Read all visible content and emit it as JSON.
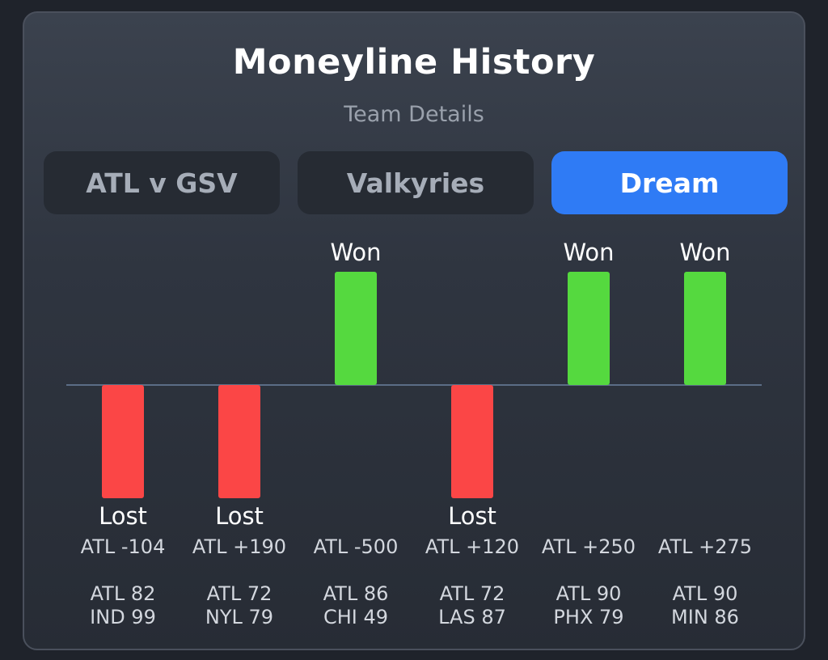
{
  "header": {
    "title": "Moneyline History",
    "subtitle": "Team Details"
  },
  "tabs": [
    {
      "label": "ATL v GSV",
      "active": false
    },
    {
      "label": "Valkyries",
      "active": false
    },
    {
      "label": "Dream",
      "active": true
    }
  ],
  "colors": {
    "won": "#55d93f",
    "lost": "#fb4646",
    "active_tab": "#2f7bf5",
    "baseline": "#5b6d86"
  },
  "chart_data": {
    "type": "bar",
    "categories": [
      "ATL -104",
      "ATL +190",
      "ATL -500",
      "ATL +120",
      "ATL +250",
      "ATL +275"
    ],
    "games": [
      {
        "result": "Lost",
        "line": "ATL -104",
        "score_team": "ATL 82",
        "score_opp": "IND 99",
        "value": -1
      },
      {
        "result": "Lost",
        "line": "ATL +190",
        "score_team": "ATL 72",
        "score_opp": "NYL 79",
        "value": -1
      },
      {
        "result": "Won",
        "line": "ATL -500",
        "score_team": "ATL 86",
        "score_opp": "CHI 49",
        "value": 1
      },
      {
        "result": "Lost",
        "line": "ATL +120",
        "score_team": "ATL 72",
        "score_opp": "LAS 87",
        "value": -1
      },
      {
        "result": "Won",
        "line": "ATL +250",
        "score_team": "ATL 90",
        "score_opp": "PHX 79",
        "value": 1
      },
      {
        "result": "Won",
        "line": "ATL +275",
        "score_team": "ATL 90",
        "score_opp": "MIN 86",
        "value": 1
      }
    ],
    "ylim": [
      -1,
      1
    ]
  }
}
